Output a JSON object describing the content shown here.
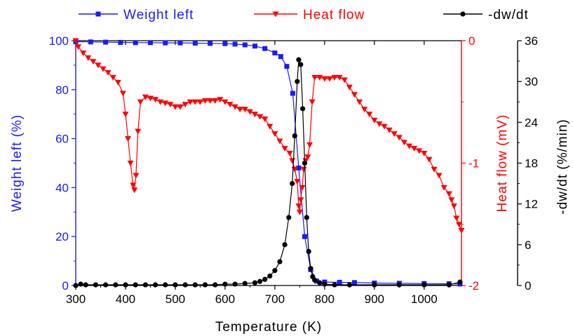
{
  "chart_data": {
    "type": "line",
    "xlabel": "Temperature (K)",
    "xlim": [
      300,
      1075
    ],
    "xticks": [
      "300",
      "400",
      "500",
      "600",
      "700",
      "800",
      "900",
      "1000"
    ],
    "axes": {
      "left": {
        "label": "Weight left (%)",
        "lim": [
          0,
          100
        ],
        "ticks": [
          "0",
          "20",
          "40",
          "60",
          "80",
          "100"
        ],
        "color": "#1a1aff"
      },
      "heat": {
        "label": "Heat flow (mV)",
        "lim": [
          -2,
          0
        ],
        "ticks": [
          "-2",
          "-1",
          "0"
        ],
        "color": "#ff0000"
      },
      "right": {
        "label": "-dw/dt (%/min)",
        "lim": [
          0,
          36
        ],
        "ticks": [
          "0",
          "6",
          "12",
          "18",
          "24",
          "30",
          "36"
        ],
        "color": "#000000"
      }
    },
    "legend_position": "top",
    "series": [
      {
        "name": "Weight left",
        "axis": "left",
        "color": "#1a1aff",
        "marker": "square",
        "x": [
          300,
          330,
          360,
          390,
          420,
          450,
          480,
          510,
          540,
          570,
          600,
          620,
          640,
          660,
          680,
          700,
          712,
          724,
          736,
          748,
          760,
          772,
          784,
          800,
          830,
          860,
          900,
          950,
          1000,
          1050,
          1072
        ],
        "y": [
          99.6,
          99.5,
          99.4,
          99.3,
          99.2,
          99.2,
          99.1,
          99.1,
          99.0,
          98.9,
          98.8,
          98.6,
          98.3,
          97.8,
          96.8,
          95.0,
          93.5,
          89.5,
          78.5,
          48.0,
          20.0,
          6.5,
          1.8,
          1.4,
          1.3,
          1.2,
          1.0,
          0.9,
          0.8,
          0.7,
          0.6
        ]
      },
      {
        "name": "Heat flow",
        "axis": "heat",
        "color": "#ff0000",
        "marker": "triangle-down",
        "x": [
          300,
          305,
          315,
          325,
          335,
          345,
          355,
          365,
          375,
          385,
          395,
          400,
          405,
          410,
          415,
          418,
          421,
          425,
          430,
          440,
          450,
          460,
          470,
          480,
          490,
          500,
          510,
          520,
          530,
          540,
          550,
          560,
          570,
          580,
          590,
          600,
          610,
          620,
          630,
          640,
          650,
          660,
          670,
          680,
          690,
          700,
          710,
          720,
          730,
          735,
          740,
          745,
          748,
          750,
          752,
          755,
          758,
          762,
          766,
          770,
          775,
          780,
          790,
          800,
          810,
          820,
          830,
          840,
          850,
          860,
          870,
          880,
          890,
          900,
          910,
          920,
          930,
          940,
          950,
          960,
          970,
          980,
          990,
          1000,
          1010,
          1020,
          1030,
          1040,
          1050,
          1055,
          1060,
          1065,
          1070,
          1075
        ],
        "y": [
          0,
          -0.05,
          -0.1,
          -0.14,
          -0.17,
          -0.2,
          -0.23,
          -0.26,
          -0.3,
          -0.34,
          -0.43,
          -0.6,
          -0.8,
          -1.0,
          -1.18,
          -1.22,
          -1.1,
          -0.74,
          -0.5,
          -0.46,
          -0.47,
          -0.48,
          -0.5,
          -0.51,
          -0.52,
          -0.54,
          -0.54,
          -0.52,
          -0.5,
          -0.5,
          -0.5,
          -0.49,
          -0.49,
          -0.49,
          -0.48,
          -0.5,
          -0.52,
          -0.54,
          -0.56,
          -0.56,
          -0.58,
          -0.6,
          -0.62,
          -0.64,
          -0.7,
          -0.76,
          -0.82,
          -0.88,
          -0.92,
          -0.98,
          -1.05,
          -1.15,
          -1.35,
          -1.4,
          -1.3,
          -1.2,
          -1.05,
          -0.98,
          -0.95,
          -0.85,
          -0.5,
          -0.3,
          -0.3,
          -0.31,
          -0.31,
          -0.3,
          -0.3,
          -0.32,
          -0.38,
          -0.44,
          -0.5,
          -0.56,
          -0.6,
          -0.65,
          -0.68,
          -0.7,
          -0.73,
          -0.76,
          -0.79,
          -0.83,
          -0.86,
          -0.88,
          -0.9,
          -0.92,
          -0.97,
          -1.05,
          -1.1,
          -1.2,
          -1.25,
          -1.3,
          -1.35,
          -1.45,
          -1.5,
          -1.55
        ]
      },
      {
        "name": "-dw/dt",
        "axis": "right",
        "color": "#000000",
        "marker": "circle",
        "x": [
          300,
          310,
          320,
          340,
          360,
          380,
          400,
          420,
          440,
          460,
          480,
          500,
          520,
          540,
          560,
          580,
          600,
          620,
          640,
          660,
          670,
          680,
          690,
          700,
          710,
          720,
          728,
          735,
          740,
          745,
          748,
          752,
          756,
          760,
          764,
          768,
          772,
          776,
          780,
          790,
          800,
          820,
          850,
          900,
          950,
          1000,
          1050,
          1072
        ],
        "y": [
          0,
          0.2,
          0.1,
          0.1,
          0.1,
          0.1,
          0.1,
          0.1,
          0.1,
          0.1,
          0.1,
          0.1,
          0.1,
          0.1,
          0.1,
          0.1,
          0.2,
          0.2,
          0.3,
          0.4,
          0.6,
          0.9,
          1.4,
          2.2,
          3.5,
          6.0,
          10.0,
          15.0,
          22.0,
          30.0,
          33.2,
          32.5,
          26.0,
          18.0,
          10.0,
          5.0,
          2.5,
          1.3,
          0.8,
          0.4,
          0.2,
          0.1,
          0.1,
          0.1,
          0.1,
          0.1,
          0.1,
          0.5
        ]
      }
    ],
    "legend": [
      {
        "label": "Weight left",
        "color": "#1a1aff",
        "marker": "square"
      },
      {
        "label": "Heat flow",
        "color": "#ff0000",
        "marker": "triangle-down"
      },
      {
        "label": "-dw/dt",
        "color": "#000000",
        "marker": "circle"
      }
    ]
  }
}
